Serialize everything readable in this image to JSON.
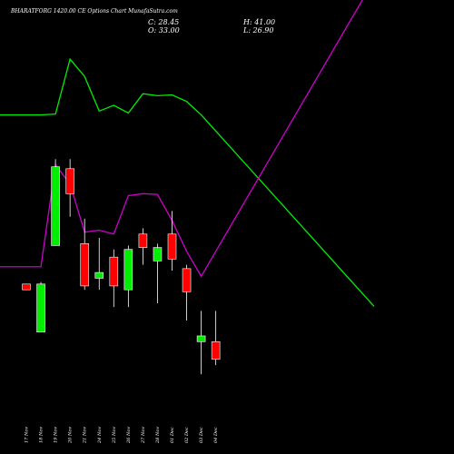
{
  "header": {
    "title": "BHARATFORG 1420.00 CE Options Chart MunafaSutra.com",
    "c": "C: 28.45",
    "o": "O: 33.00",
    "h": "H: 41.00",
    "l": "L: 26.90"
  },
  "chart_data": {
    "type": "candlestick",
    "title": "BHARATFORG 1420.00 CE Options Chart MunafaSutra.com",
    "categories": [
      "17 Nov",
      "18 Nov",
      "19 Nov",
      "20 Nov",
      "21 Nov",
      "24 Nov",
      "25 Nov",
      "26 Nov",
      "27 Nov",
      "28 Nov",
      "01 Dec",
      "02 Dec",
      "03 Dec",
      "04 Dec"
    ],
    "candles": [
      {
        "date": "17 Nov",
        "open": 48.0,
        "high": 48.0,
        "low": 46.5,
        "close": 46.5,
        "color": "red"
      },
      {
        "date": "18 Nov",
        "open": 35.5,
        "high": 48.5,
        "low": 35.5,
        "close": 48.0,
        "color": "green"
      },
      {
        "date": "19 Nov",
        "open": 58.0,
        "high": 80.5,
        "low": 58.0,
        "close": 78.5,
        "color": "green"
      },
      {
        "date": "20 Nov",
        "open": 78.0,
        "high": 80.5,
        "low": 65.5,
        "close": 71.5,
        "color": "red"
      },
      {
        "date": "21 Nov",
        "open": 58.5,
        "high": 65.0,
        "low": 46.5,
        "close": 47.5,
        "color": "red"
      },
      {
        "date": "24 Nov",
        "open": 49.5,
        "high": 60.0,
        "low": 46.5,
        "close": 51.0,
        "color": "green"
      },
      {
        "date": "25 Nov",
        "open": 55.0,
        "high": 57.0,
        "low": 42.0,
        "close": 47.5,
        "color": "red"
      },
      {
        "date": "26 Nov",
        "open": 46.5,
        "high": 58.0,
        "low": 42.0,
        "close": 57.0,
        "color": "green"
      },
      {
        "date": "27 Nov",
        "open": 61.0,
        "high": 62.5,
        "low": 53.0,
        "close": 57.5,
        "color": "red"
      },
      {
        "date": "28 Nov",
        "open": 54.0,
        "high": 58.5,
        "low": 43.0,
        "close": 57.5,
        "color": "green"
      },
      {
        "date": "01 Dec",
        "open": 61.0,
        "high": 67.0,
        "low": 51.5,
        "close": 54.5,
        "color": "red"
      },
      {
        "date": "02 Dec",
        "open": 52.0,
        "high": 53.0,
        "low": 38.5,
        "close": 46.0,
        "color": "red"
      },
      {
        "date": "03 Dec",
        "open": 33.0,
        "high": 41.0,
        "low": 24.5,
        "close": 34.5,
        "color": "green"
      },
      {
        "date": "04 Dec",
        "open": 33.0,
        "high": 41.0,
        "low": 26.9,
        "close": 28.45,
        "color": "red"
      }
    ],
    "indicator_lines": [
      {
        "color": "#00ee00",
        "values": [
          92.0,
          92.0,
          92.2,
          106.5,
          102.0,
          93.0,
          94.5,
          92.5,
          97.5,
          97.0,
          97.2,
          95.5,
          92.0,
          87.8
        ]
      },
      {
        "color": "#cc00cc",
        "values": [
          52.5,
          52.5,
          79.0,
          74.0,
          61.5,
          62.0,
          61.0,
          71.0,
          71.5,
          71.3,
          64.5,
          56.5,
          50.0,
          56.5
        ]
      }
    ],
    "ylim": [
      0,
      120
    ]
  }
}
